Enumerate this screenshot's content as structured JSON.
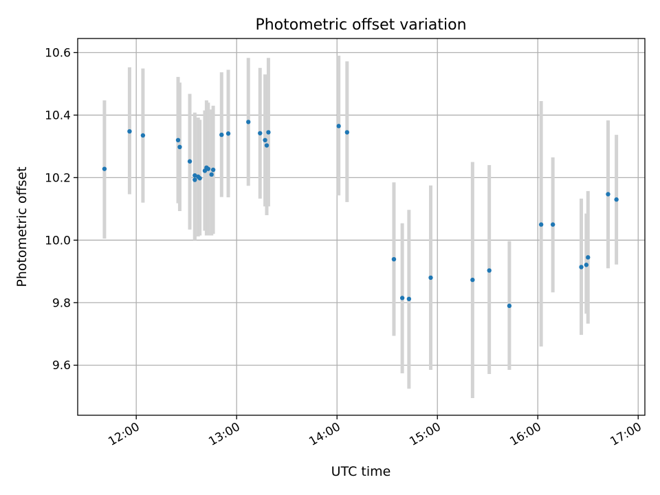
{
  "chart_data": {
    "type": "scatter",
    "title": "Photometric offset variation",
    "xlabel": "UTC time",
    "ylabel": "Photometric offset",
    "grid": true,
    "x_unit": "UTC time (HH:MM)",
    "xlim": [
      "11:25",
      "17:04"
    ],
    "ylim": [
      9.44,
      10.645
    ],
    "x_ticks": [
      "12:00",
      "13:00",
      "14:00",
      "15:00",
      "16:00",
      "17:00"
    ],
    "y_ticks": [
      "9.6",
      "9.8",
      "10.0",
      "10.2",
      "10.4",
      "10.6"
    ],
    "point_color": "#1f77b4",
    "errorbar_color": "#d3d3d3",
    "points": [
      {
        "x": "11:41",
        "y": 10.228,
        "low": 10.005,
        "high": 10.447
      },
      {
        "x": "11:56",
        "y": 10.348,
        "low": 10.147,
        "high": 10.553
      },
      {
        "x": "12:04",
        "y": 10.335,
        "low": 10.12,
        "high": 10.549
      },
      {
        "x": "12:25",
        "y": 10.32,
        "low": 10.118,
        "high": 10.522
      },
      {
        "x": "12:26",
        "y": 10.298,
        "low": 10.093,
        "high": 10.504
      },
      {
        "x": "12:32",
        "y": 10.252,
        "low": 10.034,
        "high": 10.468
      },
      {
        "x": "12:35",
        "y": 10.207,
        "low": 10.0,
        "high": 10.408
      },
      {
        "x": "12:35",
        "y": 10.193,
        "low": 10.003,
        "high": 10.4
      },
      {
        "x": "12:37",
        "y": 10.203,
        "low": 10.012,
        "high": 10.392
      },
      {
        "x": "12:38",
        "y": 10.198,
        "low": 10.015,
        "high": 10.385
      },
      {
        "x": "12:41",
        "y": 10.222,
        "low": 10.03,
        "high": 10.415
      },
      {
        "x": "12:42",
        "y": 10.232,
        "low": 10.015,
        "high": 10.447
      },
      {
        "x": "12:43",
        "y": 10.228,
        "low": 10.015,
        "high": 10.44
      },
      {
        "x": "12:45",
        "y": 10.21,
        "low": 10.015,
        "high": 10.418
      },
      {
        "x": "12:46",
        "y": 10.225,
        "low": 10.02,
        "high": 10.43
      },
      {
        "x": "12:51",
        "y": 10.337,
        "low": 10.138,
        "high": 10.537
      },
      {
        "x": "12:55",
        "y": 10.341,
        "low": 10.137,
        "high": 10.545
      },
      {
        "x": "13:07",
        "y": 10.378,
        "low": 10.174,
        "high": 10.583
      },
      {
        "x": "13:14",
        "y": 10.342,
        "low": 10.133,
        "high": 10.551
      },
      {
        "x": "13:17",
        "y": 10.32,
        "low": 10.108,
        "high": 10.53
      },
      {
        "x": "13:18",
        "y": 10.303,
        "low": 10.08,
        "high": 10.523
      },
      {
        "x": "13:19",
        "y": 10.345,
        "low": 10.108,
        "high": 10.583
      },
      {
        "x": "14:01",
        "y": 10.365,
        "low": 10.143,
        "high": 10.59
      },
      {
        "x": "14:06",
        "y": 10.345,
        "low": 10.122,
        "high": 10.572
      },
      {
        "x": "14:34",
        "y": 9.939,
        "low": 9.694,
        "high": 10.185
      },
      {
        "x": "14:39",
        "y": 9.815,
        "low": 9.574,
        "high": 10.054
      },
      {
        "x": "14:43",
        "y": 9.812,
        "low": 9.525,
        "high": 10.097
      },
      {
        "x": "14:56",
        "y": 9.88,
        "low": 9.585,
        "high": 10.175
      },
      {
        "x": "15:21",
        "y": 9.873,
        "low": 9.495,
        "high": 10.25
      },
      {
        "x": "15:31",
        "y": 9.903,
        "low": 9.572,
        "high": 10.24
      },
      {
        "x": "15:43",
        "y": 9.79,
        "low": 9.585,
        "high": 9.997
      },
      {
        "x": "16:02",
        "y": 10.05,
        "low": 9.66,
        "high": 10.445
      },
      {
        "x": "16:09",
        "y": 10.05,
        "low": 9.833,
        "high": 10.265
      },
      {
        "x": "16:26",
        "y": 9.914,
        "low": 9.697,
        "high": 10.133
      },
      {
        "x": "16:29",
        "y": 9.921,
        "low": 9.765,
        "high": 10.085
      },
      {
        "x": "16:30",
        "y": 9.945,
        "low": 9.733,
        "high": 10.157
      },
      {
        "x": "16:42",
        "y": 10.147,
        "low": 9.91,
        "high": 10.383
      },
      {
        "x": "16:47",
        "y": 10.13,
        "low": 9.922,
        "high": 10.337
      }
    ]
  }
}
